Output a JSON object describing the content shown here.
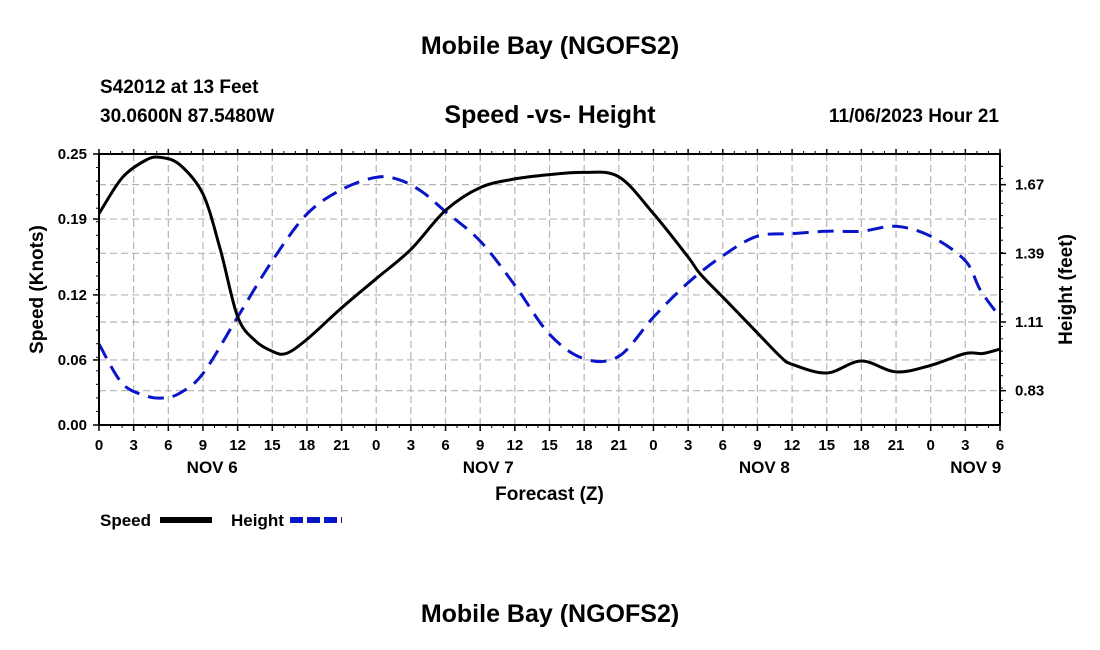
{
  "header": {
    "title": "Mobile Bay (NGOFS2)",
    "station": "S42012 at 13 Feet",
    "coords": "30.0600N  87.5480W",
    "subtitle": "Speed -vs- Height",
    "datetime": "11/06/2023 Hour 21"
  },
  "footer": {
    "title": "Mobile Bay (NGOFS2)"
  },
  "colors": {
    "speed": "#000000",
    "height": "#0a14c8",
    "grid": "#b4b4b4"
  },
  "chart_data": {
    "type": "line",
    "title": "Speed -vs- Height",
    "xlabel": "Forecast (Z)",
    "ylabel": "Speed (Knots)",
    "y2label": "Height (feet)",
    "xlim": [
      0,
      78
    ],
    "ylim": [
      0,
      0.25
    ],
    "y2lim": [
      0.69,
      1.795
    ],
    "xtick_hours": [
      0,
      3,
      6,
      9,
      12,
      15,
      18,
      21,
      24,
      27,
      30,
      33,
      36,
      39,
      42,
      45,
      48,
      51,
      54,
      57,
      60,
      63,
      66,
      69,
      72,
      75,
      78
    ],
    "xtick_labels": [
      "0",
      "3",
      "6",
      "9",
      "12",
      "15",
      "18",
      "21",
      "0",
      "3",
      "6",
      "9",
      "12",
      "15",
      "18",
      "21",
      "0",
      "3",
      "6",
      "9",
      "12",
      "15",
      "18",
      "21",
      "0",
      "3",
      "6"
    ],
    "ytick_values": [
      0,
      0.06,
      0.12,
      0.19,
      0.25
    ],
    "ytick_labels": [
      "0.00",
      "0.06",
      "0.12",
      "0.19",
      "0.25"
    ],
    "y2tick_values": [
      0.83,
      1.11,
      1.39,
      1.67
    ],
    "y2tick_labels": [
      "0.83",
      "1.11",
      "1.39",
      "1.67"
    ],
    "date_labels": [
      {
        "hour": 9.8,
        "label": "NOV 6"
      },
      {
        "hour": 33.7,
        "label": "NOV 7"
      },
      {
        "hour": 57.6,
        "label": "NOV 8"
      },
      {
        "hour": 75.9,
        "label": "NOV 9"
      }
    ],
    "grid": true,
    "legend": [
      {
        "name": "Speed",
        "style": "solid"
      },
      {
        "name": "Height",
        "style": "dashed"
      }
    ],
    "series": [
      {
        "name": "Speed",
        "axis": "left",
        "style": "solid",
        "x": [
          0,
          2,
          4,
          5.3,
          7,
          9,
          10.5,
          12,
          13.5,
          15,
          16.2,
          18,
          21,
          24,
          27,
          30,
          33,
          36,
          39,
          42,
          45,
          48,
          51,
          52,
          54,
          57,
          59,
          60,
          63,
          66,
          69,
          72,
          75,
          76.5,
          78
        ],
        "y": [
          0.195,
          0.228,
          0.244,
          0.247,
          0.24,
          0.213,
          0.162,
          0.1,
          0.078,
          0.068,
          0.066,
          0.079,
          0.108,
          0.135,
          0.162,
          0.198,
          0.219,
          0.227,
          0.231,
          0.233,
          0.229,
          0.195,
          0.155,
          0.14,
          0.118,
          0.085,
          0.063,
          0.056,
          0.048,
          0.059,
          0.049,
          0.055,
          0.066,
          0.066,
          0.07
        ]
      },
      {
        "name": "Height",
        "axis": "right",
        "style": "dashed",
        "x": [
          0,
          2,
          4,
          5.5,
          7,
          9,
          12,
          15,
          18,
          21,
          24,
          26,
          28,
          30,
          33,
          36,
          39,
          42,
          45,
          48,
          51,
          54,
          57,
          60,
          63,
          66,
          69,
          72,
          75,
          76.3,
          78
        ],
        "y": [
          1.02,
          0.86,
          0.81,
          0.8,
          0.82,
          0.9,
          1.13,
          1.36,
          1.55,
          1.65,
          1.7,
          1.69,
          1.64,
          1.56,
          1.44,
          1.26,
          1.06,
          0.96,
          0.97,
          1.13,
          1.27,
          1.38,
          1.46,
          1.47,
          1.48,
          1.48,
          1.5,
          1.46,
          1.36,
          1.24,
          1.13
        ]
      }
    ]
  }
}
